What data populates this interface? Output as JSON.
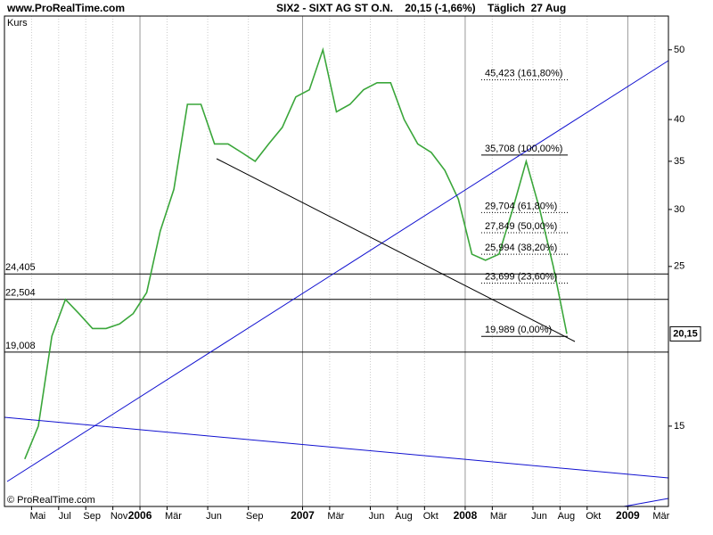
{
  "chart_data": {
    "type": "line",
    "site": "www.ProRealTime.com",
    "title": "SIX2 - SIXT AG ST O.N.    20,15 (-1,66%)    Täglich  27 Aug",
    "y_label": "Kurs",
    "copyright": "© ProRealTime.com",
    "last_price": {
      "value": 20.15,
      "label": "20,15"
    },
    "log_scale": true,
    "grid": true,
    "x": [
      "2005-04",
      "2005-05",
      "2005-06",
      "2005-07",
      "2005-08",
      "2005-09",
      "2005-10",
      "2005-11",
      "2005-12",
      "2006-01",
      "2006-02",
      "2006-03",
      "2006-04",
      "2006-05",
      "2006-06",
      "2006-07",
      "2006-08",
      "2006-09",
      "2006-10",
      "2006-11",
      "2006-12",
      "2007-01",
      "2007-02",
      "2007-03",
      "2007-04",
      "2007-05",
      "2007-06",
      "2007-07",
      "2007-08",
      "2007-09",
      "2007-10",
      "2007-11",
      "2007-12",
      "2008-01",
      "2008-02",
      "2008-03",
      "2008-04",
      "2008-05",
      "2008-06",
      "2008-07",
      "2008-08"
    ],
    "series": [
      {
        "color": "#3aa63a",
        "values": [
          13.5,
          15,
          20,
          22.5,
          21.5,
          20.5,
          20.5,
          20.8,
          21.5,
          23,
          28,
          32,
          42,
          42,
          37,
          37,
          36,
          35,
          37,
          39,
          43,
          44,
          50,
          41,
          42,
          44,
          45,
          45,
          40,
          37,
          36,
          34,
          31,
          26,
          25.5,
          26,
          30,
          35,
          30,
          25,
          20.15
        ]
      }
    ],
    "xlim": [
      "2005-03",
      "2009-04"
    ],
    "xticks": [
      {
        "value": "2005-05",
        "label": "Mai"
      },
      {
        "value": "2005-07",
        "label": "Jul"
      },
      {
        "value": "2005-09",
        "label": "Sep"
      },
      {
        "value": "2005-11",
        "label": "Nov"
      },
      {
        "value": "2006-01",
        "label": "2006"
      },
      {
        "value": "2006-03",
        "label": "Mär"
      },
      {
        "value": "2006-06",
        "label": "Jun"
      },
      {
        "value": "2006-09",
        "label": "Sep"
      },
      {
        "value": "2007-01",
        "label": "2007"
      },
      {
        "value": "2007-03",
        "label": "Mär"
      },
      {
        "value": "2007-06",
        "label": "Jun"
      },
      {
        "value": "2007-08",
        "label": "Aug"
      },
      {
        "value": "2007-10",
        "label": "Okt"
      },
      {
        "value": "2008-01",
        "label": "2008"
      },
      {
        "value": "2008-03",
        "label": "Mär"
      },
      {
        "value": "2008-06",
        "label": "Jun"
      },
      {
        "value": "2008-08",
        "label": "Aug"
      },
      {
        "value": "2008-10",
        "label": "Okt"
      },
      {
        "value": "2009-01",
        "label": "2009"
      },
      {
        "value": "2009-03",
        "label": "Mär"
      }
    ],
    "ylim": [
      11.6,
      55.7
    ],
    "yticks": [
      15,
      25,
      30,
      35,
      40,
      50
    ],
    "levels": [
      {
        "value": 24.405,
        "label": "24,405"
      },
      {
        "value": 22.504,
        "label": "22,504"
      },
      {
        "value": 19.008,
        "label": "19,008"
      }
    ],
    "fib_levels": [
      {
        "value": 45.423,
        "label": "45,423 (161,80%)"
      },
      {
        "value": 35.708,
        "label": "35,708 (100,00%)"
      },
      {
        "value": 29.704,
        "label": "29,704 (61,80%)"
      },
      {
        "value": 27.849,
        "label": "27,849 (50,00%)"
      },
      {
        "value": 25.994,
        "label": "25,994 (38,20%)"
      },
      {
        "value": 23.699,
        "label": "23,699 (23,60%)"
      },
      {
        "value": 19.989,
        "label": "19,989 (0,00%)"
      }
    ]
  }
}
